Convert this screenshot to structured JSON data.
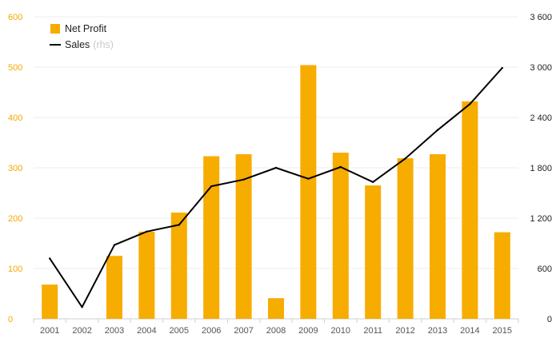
{
  "chart_data": {
    "type": "bar+line",
    "categories": [
      "2001",
      "2002",
      "2003",
      "2004",
      "2005",
      "2006",
      "2007",
      "2008",
      "2009",
      "2010",
      "2011",
      "2012",
      "2013",
      "2014",
      "2015"
    ],
    "series": [
      {
        "name": "Net Profit",
        "kind": "bar",
        "axis": "left",
        "color": "#f7ac00",
        "values": [
          68,
          0,
          125,
          173,
          211,
          323,
          327,
          41,
          504,
          330,
          265,
          319,
          327,
          432,
          172
        ]
      },
      {
        "name": "Sales",
        "name_suffix": "(rhs)",
        "kind": "line",
        "axis": "right",
        "color": "#000000",
        "values": [
          720,
          140,
          880,
          1040,
          1120,
          1580,
          1660,
          1800,
          1670,
          1810,
          1630,
          1910,
          2250,
          2560,
          2990
        ]
      }
    ],
    "left_axis": {
      "ylim": [
        0,
        600
      ],
      "ticks": [
        "0",
        "100",
        "200",
        "300",
        "400",
        "500",
        "600"
      ],
      "color": "#f5a800"
    },
    "right_axis": {
      "ylim": [
        0,
        3600
      ],
      "ticks": [
        "0",
        "600",
        "1 200",
        "1 800",
        "2 400",
        "3 000",
        "3 600"
      ],
      "color": "#222222"
    },
    "grid": true,
    "legend": "top-left"
  }
}
